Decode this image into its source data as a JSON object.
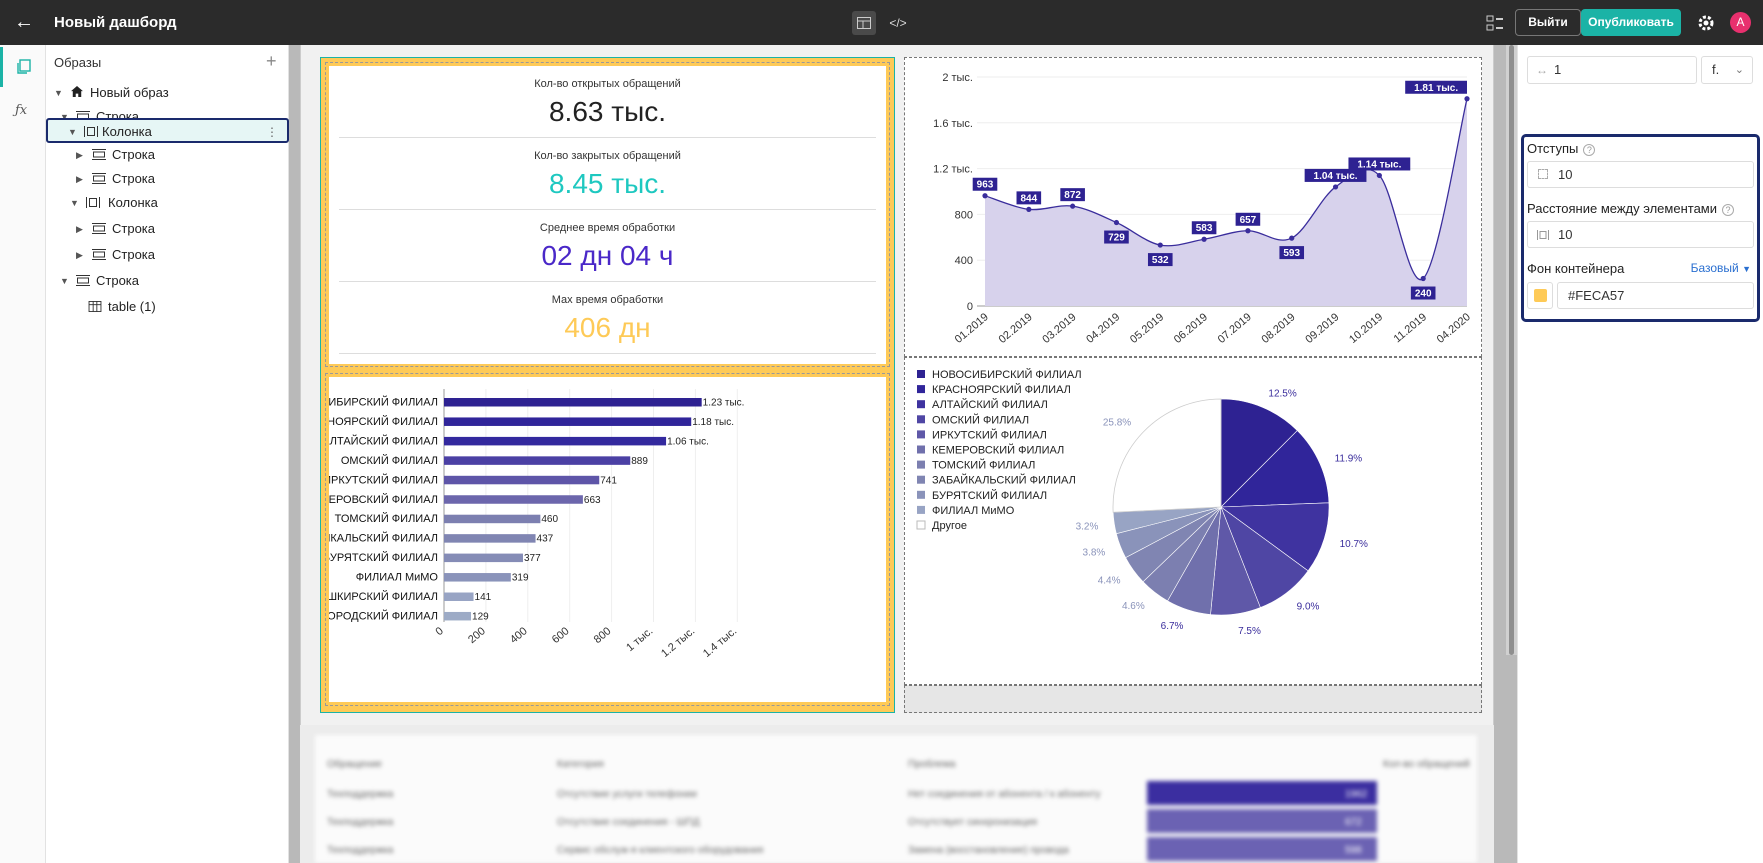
{
  "topbar": {
    "back_icon": "arrow-left-icon",
    "title": "Новый дашборд",
    "mode_design_icon": "layout-icon",
    "mode_code_label": "</>",
    "exit_label": "Выйти",
    "publish_label": "Опубликовать",
    "avatar_letter": "A"
  },
  "rail": {
    "formula_label": "ƒx"
  },
  "tree": {
    "header": "Образы",
    "add_label": "+",
    "items": [
      {
        "label": "Новый образ",
        "type": "home"
      },
      {
        "label": "Строка",
        "type": "row"
      },
      {
        "label": "Колонка",
        "type": "column",
        "selected": true
      },
      {
        "label": "Строка",
        "type": "row"
      },
      {
        "label": "Строка",
        "type": "row"
      },
      {
        "label": "Колонка",
        "type": "column"
      },
      {
        "label": "Строка",
        "type": "row"
      },
      {
        "label": "Строка",
        "type": "row"
      },
      {
        "label": "Строка",
        "type": "row"
      },
      {
        "label": "table (1)",
        "type": "table"
      }
    ]
  },
  "kpis": [
    {
      "title": "Кол-во открытых обращений",
      "value": "8.63 тыс.",
      "color": "#222222"
    },
    {
      "title": "Кол-во закрытых обращений",
      "value": "8.45 тыс.",
      "color": "#1ec8c0"
    },
    {
      "title": "Среднее время обработки",
      "value": "02 дн 04 ч",
      "color": "#4a28c8"
    },
    {
      "title": "Мах время обработки",
      "value": "406 дн",
      "color": "#feca57"
    }
  ],
  "chart_data": [
    {
      "type": "bar",
      "orientation": "horizontal",
      "categories": [
        "НОВОСИБИРСКИЙ ФИЛИАЛ",
        "КРАСНОЯРСКИЙ ФИЛИАЛ",
        "АЛТАЙСКИЙ ФИЛИАЛ",
        "ОМСКИЙ ФИЛИАЛ",
        "ИРКУТСКИЙ ФИЛИАЛ",
        "КЕМЕРОВСКИЙ ФИЛИАЛ",
        "ТОМСКИЙ ФИЛИАЛ",
        "ЗАБАЙКАЛЬСКИЙ ФИЛИАЛ",
        "БУРЯТСКИЙ ФИЛИАЛ",
        "ФИЛИАЛ МиМО",
        "БАШКИРСКИЙ ФИЛИАЛ",
        "НИЖЕГОРОДСКИЙ ФИЛИАЛ"
      ],
      "values": [
        1230,
        1180,
        1060,
        889,
        741,
        663,
        460,
        437,
        377,
        319,
        141,
        129
      ],
      "value_labels": [
        "1.23 тыс.",
        "1.18 тыс.",
        "1.06 тыс.",
        "889",
        "741",
        "663",
        "460",
        "437",
        "377",
        "319",
        "141",
        "129"
      ],
      "colors": [
        "#2e2292",
        "#30259a",
        "#33299e",
        "#4b40a4",
        "#5e55a8",
        "#6c66ac",
        "#7c7fb0",
        "#8085b2",
        "#858cb6",
        "#8a93ba",
        "#98a4c4",
        "#9dabc6"
      ],
      "xticks": [
        "0",
        "200",
        "400",
        "600",
        "800",
        "1 тыс.",
        "1.2 тыс.",
        "1.4 тыс."
      ],
      "xlim": [
        0,
        1400
      ]
    },
    {
      "type": "area",
      "x": [
        "01.2019",
        "02.2019",
        "03.2019",
        "04.2019",
        "05.2019",
        "06.2019",
        "07.2019",
        "08.2019",
        "09.2019",
        "10.2019",
        "11.2019",
        "04.2020"
      ],
      "values": [
        963,
        844,
        872,
        729,
        532,
        583,
        657,
        593,
        1040,
        1140,
        240,
        1810
      ],
      "value_labels": [
        "963",
        "844",
        "872",
        "729",
        "532",
        "583",
        "657",
        "593",
        "1.04 тыс.",
        "1.14 тыс.",
        "240",
        "1.81 тыс."
      ],
      "yticks": [
        "0",
        "400",
        "800",
        "1.2 тыс.",
        "1.6 тыс.",
        "2 тыс."
      ],
      "ylim": [
        0,
        2000
      ],
      "line_color": "#3a2d9c",
      "fill_color": "#d7d2ec"
    },
    {
      "type": "pie",
      "labels": [
        "НОВОСИБИРСКИЙ ФИЛИАЛ",
        "КРАСНОЯРСКИЙ ФИЛИАЛ",
        "АЛТАЙСКИЙ ФИЛИАЛ",
        "ОМСКИЙ ФИЛИАЛ",
        "ИРКУТСКИЙ ФИЛИАЛ",
        "КЕМЕРОВСКИЙ ФИЛИАЛ",
        "ТОМСКИЙ ФИЛИАЛ",
        "ЗАБАЙКАЛЬСКИЙ ФИЛИАЛ",
        "БУРЯТСКИЙ ФИЛИАЛ",
        "ФИЛИАЛ МиМО",
        "Другое"
      ],
      "values": [
        12.5,
        11.9,
        10.7,
        9.0,
        7.5,
        6.7,
        4.6,
        4.4,
        3.8,
        3.2,
        25.8
      ],
      "value_labels": [
        "12.5%",
        "11.9%",
        "10.7%",
        "9.0%",
        "7.5%",
        "6.7%",
        "4.6%",
        "4.4%",
        "3.8%",
        "3.2%",
        "25.8%"
      ],
      "colors": [
        "#2e2292",
        "#30259a",
        "#3f33a0",
        "#4f46a4",
        "#5f58a8",
        "#7070ac",
        "#7c7fb0",
        "#8085b2",
        "#8a93ba",
        "#98a4c4",
        "#ffffff"
      ],
      "legend": "left"
    }
  ],
  "table": {
    "headers": [
      "Обращение",
      "Категория",
      "Проблема",
      "Кол-во обращений"
    ],
    "rows": [
      [
        "Техподдержка",
        "Отсутствие услуги телефонии",
        "Нет соединения от абонента / к абоненту",
        "1962"
      ],
      [
        "Техподдержка",
        "Отсутствие соединения - ШПД",
        "Отсутствует синхронизация",
        "672"
      ],
      [
        "Техподдержка",
        "Сервис обслуж-я клиентского оборудования",
        "Замена (восстановление) провода",
        "598"
      ]
    ]
  },
  "props": {
    "width_value": "1",
    "width_unit": "f.",
    "padding_label": "Отступы",
    "padding_value": "10",
    "gap_label": "Расстояние между элементами",
    "gap_value": "10",
    "bg_label": "Фон контейнера",
    "bg_mode": "Базовый",
    "bg_value": "#FECA57",
    "bg_color": "#feca57"
  }
}
